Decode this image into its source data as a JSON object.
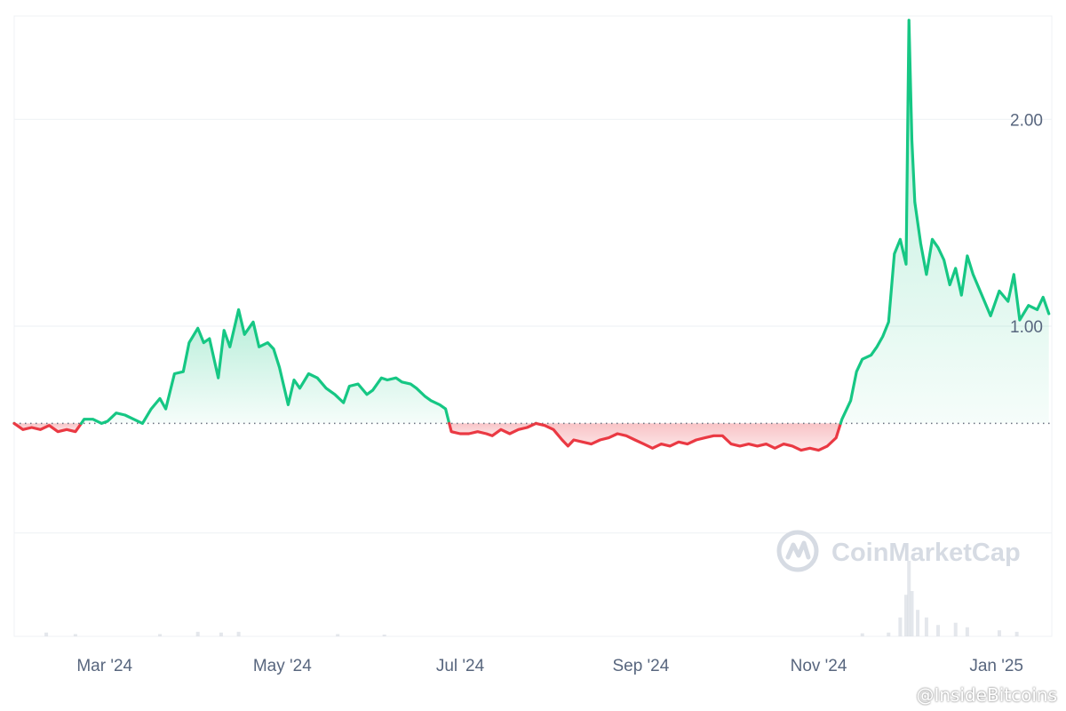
{
  "chart_data": {
    "type": "line",
    "title": "",
    "baseline": 0.53,
    "ylim": [
      -0.5,
      2.5
    ],
    "y_ticks": [
      {
        "value": 2.0,
        "label": "2.00"
      },
      {
        "value": 1.0,
        "label": "1.00"
      }
    ],
    "x_ticks": [
      {
        "date": "2024-03-01",
        "label": "Mar '24"
      },
      {
        "date": "2024-05-01",
        "label": "May '24"
      },
      {
        "date": "2024-07-01",
        "label": "Jul '24"
      },
      {
        "date": "2024-09-01",
        "label": "Sep '24"
      },
      {
        "date": "2024-11-01",
        "label": "Nov '24"
      },
      {
        "date": "2025-01-01",
        "label": "Jan '25"
      }
    ],
    "xlim": [
      "2024-01-30",
      "2025-01-20"
    ],
    "colors": {
      "up": "#16c784",
      "down": "#ea3943",
      "grid": "#eff2f5",
      "baseline": "#6b7280"
    },
    "series": [
      {
        "points": [
          [
            "2024-01-30",
            0.53
          ],
          [
            "2024-02-02",
            0.5
          ],
          [
            "2024-02-05",
            0.51
          ],
          [
            "2024-02-08",
            0.5
          ],
          [
            "2024-02-11",
            0.52
          ],
          [
            "2024-02-14",
            0.49
          ],
          [
            "2024-02-17",
            0.5
          ],
          [
            "2024-02-20",
            0.49
          ],
          [
            "2024-02-23",
            0.55
          ],
          [
            "2024-02-26",
            0.55
          ],
          [
            "2024-02-29",
            0.53
          ],
          [
            "2024-03-02",
            0.54
          ],
          [
            "2024-03-05",
            0.58
          ],
          [
            "2024-03-08",
            0.57
          ],
          [
            "2024-03-11",
            0.55
          ],
          [
            "2024-03-14",
            0.53
          ],
          [
            "2024-03-17",
            0.6
          ],
          [
            "2024-03-20",
            0.65
          ],
          [
            "2024-03-22",
            0.6
          ],
          [
            "2024-03-25",
            0.77
          ],
          [
            "2024-03-28",
            0.78
          ],
          [
            "2024-03-30",
            0.92
          ],
          [
            "2024-04-02",
            0.99
          ],
          [
            "2024-04-04",
            0.92
          ],
          [
            "2024-04-06",
            0.94
          ],
          [
            "2024-04-09",
            0.75
          ],
          [
            "2024-04-11",
            0.98
          ],
          [
            "2024-04-13",
            0.9
          ],
          [
            "2024-04-16",
            1.08
          ],
          [
            "2024-04-18",
            0.96
          ],
          [
            "2024-04-21",
            1.02
          ],
          [
            "2024-04-23",
            0.9
          ],
          [
            "2024-04-26",
            0.92
          ],
          [
            "2024-04-28",
            0.89
          ],
          [
            "2024-04-30",
            0.8
          ],
          [
            "2024-05-03",
            0.62
          ],
          [
            "2024-05-05",
            0.74
          ],
          [
            "2024-05-07",
            0.7
          ],
          [
            "2024-05-10",
            0.77
          ],
          [
            "2024-05-13",
            0.75
          ],
          [
            "2024-05-16",
            0.7
          ],
          [
            "2024-05-19",
            0.67
          ],
          [
            "2024-05-22",
            0.63
          ],
          [
            "2024-05-24",
            0.71
          ],
          [
            "2024-05-27",
            0.72
          ],
          [
            "2024-05-30",
            0.67
          ],
          [
            "2024-06-01",
            0.69
          ],
          [
            "2024-06-04",
            0.75
          ],
          [
            "2024-06-06",
            0.74
          ],
          [
            "2024-06-09",
            0.75
          ],
          [
            "2024-06-11",
            0.73
          ],
          [
            "2024-06-14",
            0.72
          ],
          [
            "2024-06-16",
            0.7
          ],
          [
            "2024-06-19",
            0.66
          ],
          [
            "2024-06-21",
            0.64
          ],
          [
            "2024-06-24",
            0.62
          ],
          [
            "2024-06-26",
            0.6
          ],
          [
            "2024-06-28",
            0.49
          ],
          [
            "2024-07-01",
            0.48
          ],
          [
            "2024-07-04",
            0.48
          ],
          [
            "2024-07-07",
            0.49
          ],
          [
            "2024-07-10",
            0.48
          ],
          [
            "2024-07-12",
            0.47
          ],
          [
            "2024-07-15",
            0.5
          ],
          [
            "2024-07-18",
            0.48
          ],
          [
            "2024-07-21",
            0.5
          ],
          [
            "2024-07-24",
            0.51
          ],
          [
            "2024-07-27",
            0.53
          ],
          [
            "2024-07-30",
            0.52
          ],
          [
            "2024-08-02",
            0.5
          ],
          [
            "2024-08-05",
            0.45
          ],
          [
            "2024-08-07",
            0.42
          ],
          [
            "2024-08-09",
            0.45
          ],
          [
            "2024-08-12",
            0.44
          ],
          [
            "2024-08-15",
            0.43
          ],
          [
            "2024-08-18",
            0.45
          ],
          [
            "2024-08-21",
            0.46
          ],
          [
            "2024-08-24",
            0.48
          ],
          [
            "2024-08-27",
            0.47
          ],
          [
            "2024-08-30",
            0.45
          ],
          [
            "2024-09-02",
            0.43
          ],
          [
            "2024-09-05",
            0.41
          ],
          [
            "2024-09-08",
            0.43
          ],
          [
            "2024-09-11",
            0.42
          ],
          [
            "2024-09-14",
            0.44
          ],
          [
            "2024-09-17",
            0.43
          ],
          [
            "2024-09-20",
            0.45
          ],
          [
            "2024-09-23",
            0.46
          ],
          [
            "2024-09-26",
            0.47
          ],
          [
            "2024-09-29",
            0.47
          ],
          [
            "2024-10-02",
            0.43
          ],
          [
            "2024-10-05",
            0.42
          ],
          [
            "2024-10-08",
            0.43
          ],
          [
            "2024-10-11",
            0.42
          ],
          [
            "2024-10-14",
            0.43
          ],
          [
            "2024-10-17",
            0.41
          ],
          [
            "2024-10-20",
            0.43
          ],
          [
            "2024-10-23",
            0.42
          ],
          [
            "2024-10-26",
            0.4
          ],
          [
            "2024-10-29",
            0.41
          ],
          [
            "2024-11-01",
            0.4
          ],
          [
            "2024-11-04",
            0.42
          ],
          [
            "2024-11-07",
            0.46
          ],
          [
            "2024-11-09",
            0.55
          ],
          [
            "2024-11-12",
            0.64
          ],
          [
            "2024-11-14",
            0.78
          ],
          [
            "2024-11-16",
            0.84
          ],
          [
            "2024-11-19",
            0.86
          ],
          [
            "2024-11-21",
            0.9
          ],
          [
            "2024-11-23",
            0.95
          ],
          [
            "2024-11-25",
            1.02
          ],
          [
            "2024-11-27",
            1.35
          ],
          [
            "2024-11-29",
            1.42
          ],
          [
            "2024-12-01",
            1.3
          ],
          [
            "2024-12-02",
            2.48
          ],
          [
            "2024-12-03",
            1.9
          ],
          [
            "2024-12-04",
            1.6
          ],
          [
            "2024-12-06",
            1.4
          ],
          [
            "2024-12-08",
            1.25
          ],
          [
            "2024-12-10",
            1.42
          ],
          [
            "2024-12-12",
            1.38
          ],
          [
            "2024-12-14",
            1.32
          ],
          [
            "2024-12-16",
            1.2
          ],
          [
            "2024-12-18",
            1.28
          ],
          [
            "2024-12-20",
            1.15
          ],
          [
            "2024-12-22",
            1.34
          ],
          [
            "2024-12-24",
            1.25
          ],
          [
            "2024-12-27",
            1.15
          ],
          [
            "2024-12-30",
            1.05
          ],
          [
            "2025-01-02",
            1.17
          ],
          [
            "2025-01-05",
            1.12
          ],
          [
            "2025-01-07",
            1.25
          ],
          [
            "2025-01-09",
            1.03
          ],
          [
            "2025-01-12",
            1.1
          ],
          [
            "2025-01-15",
            1.08
          ],
          [
            "2025-01-17",
            1.14
          ],
          [
            "2025-01-19",
            1.06
          ]
        ]
      }
    ],
    "volume": [
      [
        "2024-02-10",
        0.05
      ],
      [
        "2024-02-20",
        0.03
      ],
      [
        "2024-03-20",
        0.03
      ],
      [
        "2024-04-02",
        0.06
      ],
      [
        "2024-04-10",
        0.05
      ],
      [
        "2024-04-16",
        0.06
      ],
      [
        "2024-05-20",
        0.03
      ],
      [
        "2024-06-05",
        0.02
      ],
      [
        "2024-11-16",
        0.04
      ],
      [
        "2024-11-25",
        0.05
      ],
      [
        "2024-11-29",
        0.25
      ],
      [
        "2024-12-01",
        0.55
      ],
      [
        "2024-12-02",
        1.0
      ],
      [
        "2024-12-03",
        0.6
      ],
      [
        "2024-12-05",
        0.35
      ],
      [
        "2024-12-08",
        0.25
      ],
      [
        "2024-12-12",
        0.15
      ],
      [
        "2024-12-18",
        0.18
      ],
      [
        "2024-12-22",
        0.12
      ],
      [
        "2025-01-02",
        0.08
      ],
      [
        "2025-01-08",
        0.06
      ]
    ]
  },
  "watermark": {
    "brand": "CoinMarketCap"
  },
  "credit": "@InsideBitcoins"
}
